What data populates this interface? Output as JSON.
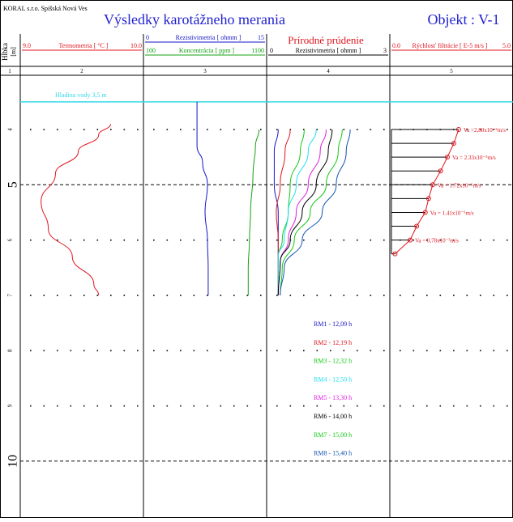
{
  "header": {
    "company": "KORAL s.r.o. Spišská Nová Ves",
    "title": "Výsledky karotážneho merania",
    "object": "Objekt : V-1",
    "title_color": "#1f1fd0"
  },
  "columns": {
    "depth_label": "Hĺbka",
    "depth_unit": "[m]",
    "col_numbers": [
      "1",
      "2",
      "3",
      "4",
      "5"
    ]
  },
  "track2": {
    "min": "9.0",
    "label": "Termometria [ °C ]",
    "max": "10.0",
    "color": "#e0141e"
  },
  "track3": {
    "res_min": "0",
    "res_label": "Rezistivimetria [ ohmm ]",
    "res_max": "15",
    "res_color": "#1414c8",
    "conc_min": "100",
    "conc_label": "Koncentrácia [ ppm ]",
    "conc_max": "1100",
    "conc_color": "#14a014"
  },
  "track4": {
    "title": "Prírodné prúdenie",
    "min": "0",
    "label": "Rezistivimetria [ ohmm ]",
    "max": "3",
    "title_color": "#e0141e"
  },
  "track5": {
    "min": "0.0",
    "label": "Rýchlosť filtrácie [ E-5 m/s ]",
    "max": "5.0",
    "color": "#e0141e"
  },
  "water_level": {
    "label": "Hladina vody 3,5 m",
    "depth": 3.5,
    "color": "#33d8e8"
  },
  "depth_ticks": [
    {
      "value": 4,
      "label": "4",
      "major": false
    },
    {
      "value": 5,
      "label": "5",
      "major": true
    },
    {
      "value": 6,
      "label": "6",
      "major": false
    },
    {
      "value": 7,
      "label": "7",
      "major": false
    },
    {
      "value": 8,
      "label": "8",
      "major": false
    },
    {
      "value": 9,
      "label": "9",
      "major": false
    },
    {
      "value": 10,
      "label": "10",
      "major": true
    }
  ],
  "legend": [
    {
      "label": "RM1  -  12,09 h",
      "color": "#1414c8"
    },
    {
      "label": "RM2  -  12,19 h",
      "color": "#e0141e"
    },
    {
      "label": "RM3  -  12,32 h",
      "color": "#14c814"
    },
    {
      "label": "RM4  -  12,50 h",
      "color": "#22e0f0"
    },
    {
      "label": "RM5  -  13,30 h",
      "color": "#e020e0"
    },
    {
      "label": "RM6  -  14,00 h",
      "color": "#000000"
    },
    {
      "label": "RM7  -  15,00 h",
      "color": "#14c814"
    },
    {
      "label": "RM8  -  15,40 h",
      "color": "#1450b4"
    }
  ],
  "velocity_labels": [
    {
      "text": "Va  =2,80x10⁻⁵m/s",
      "depth": 4.0
    },
    {
      "text": "Va  = 2.33x10⁻⁵m/s",
      "depth": 4.5
    },
    {
      "text": "Va  = 1.72x10⁻⁵m/s",
      "depth": 5.0
    },
    {
      "text": "Va  = 1.41x10⁻⁵m/s",
      "depth": 5.5
    },
    {
      "text": "Va  = 0,78x10⁻⁵m/s",
      "depth": 6.0
    }
  ],
  "chart_data": {
    "type": "line",
    "y_axis": {
      "label": "Hĺbka [m]",
      "range": [
        2.5,
        11.0
      ],
      "inverted": true
    },
    "temperature": {
      "xlim": [
        9.0,
        10.0
      ],
      "depth": [
        3.9,
        4.1,
        4.4,
        4.8,
        5.3,
        5.8,
        6.3,
        6.8,
        7.0
      ],
      "value": [
        9.74,
        9.64,
        9.47,
        9.28,
        9.16,
        9.22,
        9.42,
        9.6,
        9.64
      ]
    },
    "resistivity": {
      "xlim": [
        0,
        15
      ],
      "depth": [
        3.5,
        4.3,
        4.6,
        5.0,
        5.5,
        6.0,
        6.5,
        7.0
      ],
      "value": [
        6.5,
        6.5,
        7.2,
        7.8,
        7.5,
        7.8,
        7.9,
        7.9
      ]
    },
    "concentration": {
      "xlim": [
        100,
        1100
      ],
      "depth": [
        4.0,
        4.3,
        4.8,
        5.5,
        6.0,
        6.5,
        7.0
      ],
      "value": [
        1050,
        1020,
        1000,
        980,
        970,
        960,
        960
      ]
    },
    "natural_flow_series": [
      {
        "name": "RM1",
        "depth": [
          4.0,
          4.4,
          5.0,
          5.5,
          6.0,
          6.5,
          7.0
        ],
        "value": [
          0.25,
          0.15,
          0.15,
          0.25,
          0.25,
          0.25,
          0.25
        ]
      },
      {
        "name": "RM2",
        "depth": [
          4.0,
          4.4,
          5.0,
          5.5,
          6.0,
          6.3,
          7.0
        ],
        "value": [
          0.55,
          0.42,
          0.3,
          0.2,
          0.25,
          0.25,
          0.25
        ]
      },
      {
        "name": "RM3",
        "depth": [
          4.0,
          4.4,
          5.0,
          5.5,
          6.0,
          6.3,
          7.0
        ],
        "value": [
          0.9,
          0.8,
          0.55,
          0.5,
          0.35,
          0.25,
          0.25
        ]
      },
      {
        "name": "RM4",
        "depth": [
          4.0,
          4.4,
          5.0,
          5.5,
          6.0,
          6.3,
          7.0
        ],
        "value": [
          1.2,
          1.0,
          0.7,
          0.5,
          0.4,
          0.25,
          0.25
        ]
      },
      {
        "name": "RM5",
        "depth": [
          4.0,
          4.4,
          5.0,
          5.5,
          6.0,
          6.4,
          7.0
        ],
        "value": [
          1.45,
          1.3,
          1.0,
          0.7,
          0.5,
          0.3,
          0.25
        ]
      },
      {
        "name": "RM6",
        "depth": [
          4.0,
          4.4,
          5.0,
          5.5,
          6.0,
          6.4,
          7.0
        ],
        "value": [
          1.6,
          1.5,
          1.2,
          0.85,
          0.55,
          0.3,
          0.25
        ]
      },
      {
        "name": "RM7",
        "depth": [
          4.0,
          4.4,
          5.0,
          5.5,
          6.0,
          6.5,
          7.0
        ],
        "value": [
          1.85,
          1.75,
          1.45,
          1.05,
          0.65,
          0.35,
          0.3
        ]
      },
      {
        "name": "RM8",
        "depth": [
          4.0,
          4.4,
          5.0,
          5.5,
          6.0,
          6.5,
          7.0
        ],
        "value": [
          2.05,
          1.95,
          1.7,
          1.35,
          0.85,
          0.4,
          0.3
        ]
      }
    ],
    "filtration_velocity": {
      "xlim": [
        0.0,
        5.0
      ],
      "depth": [
        4.0,
        4.25,
        4.5,
        4.75,
        5.0,
        5.25,
        5.5,
        5.75,
        6.0,
        6.25
      ],
      "value": [
        2.8,
        2.6,
        2.33,
        2.05,
        1.72,
        1.55,
        1.41,
        1.05,
        0.78,
        0.15
      ]
    }
  }
}
